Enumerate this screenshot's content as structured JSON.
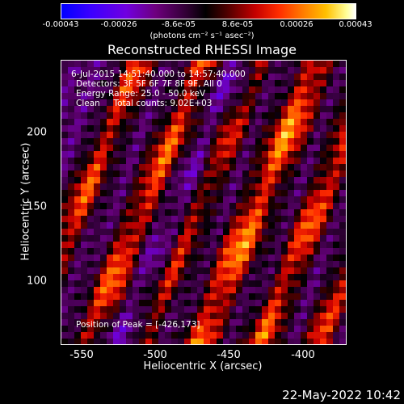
{
  "colorbar": {
    "tick_labels": [
      "-0.00043",
      "-0.00026",
      "-8.6e-05",
      "8.6e-05",
      "0.00026",
      "0.00043"
    ],
    "units_text": "(photons cm⁻² s⁻¹ asec⁻²)",
    "range": [
      -0.00043,
      0.00043
    ]
  },
  "title": "Reconstructed RHESSI Image",
  "info": {
    "time_range": "6-Jul-2015 14:51:40.000 to 14:57:40.000",
    "detectors": "Detectors: 3F 5F 6F 7F 8F 9F, All 0",
    "energy": "Energy Range: 25.0 - 50.0 keV",
    "clean": "Clean     Total counts: 9.02E+03",
    "peak": "Position of Peak = [-426,173]"
  },
  "axes": {
    "xlabel": "Heliocentric X (arcsec)",
    "ylabel": "Heliocentric Y (arcsec)",
    "xticks": [
      "-550",
      "-500",
      "-450",
      "-400"
    ],
    "yticks": [
      "200",
      "150",
      "100"
    ],
    "xlim": [
      -565,
      -370
    ],
    "ylim": [
      55,
      250
    ]
  },
  "datestamp": "22-May-2022 10:42",
  "colors": {
    "background": "#000000",
    "text": "#ffffff"
  }
}
